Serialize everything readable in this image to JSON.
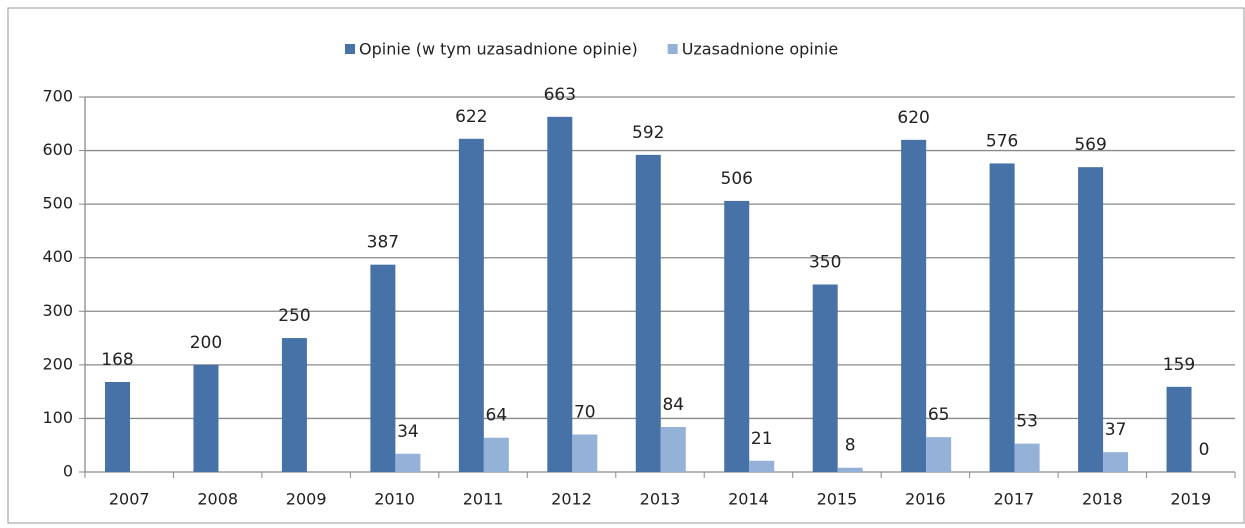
{
  "chart_data": {
    "type": "bar",
    "categories": [
      "2007",
      "2008",
      "2009",
      "2010",
      "2011",
      "2012",
      "2013",
      "2014",
      "2015",
      "2016",
      "2017",
      "2018",
      "2019"
    ],
    "series": [
      {
        "name": "Opinie (w tym uzasadnione opinie)",
        "color": "#4672a8",
        "values": [
          168,
          200,
          250,
          387,
          622,
          663,
          592,
          506,
          350,
          620,
          576,
          569,
          159
        ]
      },
      {
        "name": "Uzasadnione opinie",
        "color": "#94b1d8",
        "values": [
          null,
          null,
          null,
          34,
          64,
          70,
          84,
          21,
          8,
          65,
          53,
          37,
          0
        ]
      }
    ],
    "ylim": [
      0,
      700
    ],
    "yticks": [
      0,
      100,
      200,
      300,
      400,
      500,
      600,
      700
    ],
    "grid": true,
    "legend": "top"
  }
}
